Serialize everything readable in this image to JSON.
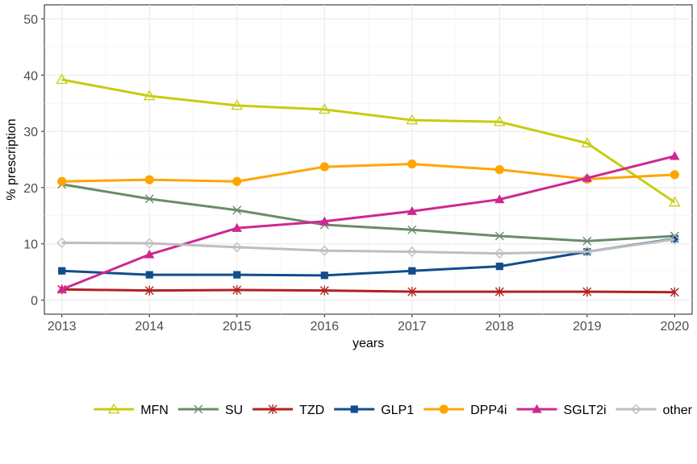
{
  "chart_data": {
    "type": "line",
    "title": "",
    "xlabel": "years",
    "ylabel": "% prescription",
    "x": [
      2013,
      2014,
      2015,
      2016,
      2017,
      2018,
      2019,
      2020
    ],
    "xlim": [
      2012.8,
      2020.2
    ],
    "ylim": [
      -2.5,
      52.5
    ],
    "yticks": [
      0,
      10,
      20,
      30,
      40,
      50
    ],
    "grid": true,
    "legend_position": "bottom",
    "series": [
      {
        "name": "MFN",
        "color": "#c8cc10",
        "marker": "triangle-open",
        "values": [
          39.2,
          36.3,
          34.6,
          33.9,
          32.0,
          31.7,
          27.9,
          17.4
        ]
      },
      {
        "name": "SU",
        "color": "#6a8c69",
        "marker": "x",
        "values": [
          20.6,
          18.0,
          16.0,
          13.4,
          12.5,
          11.4,
          10.5,
          11.4
        ]
      },
      {
        "name": "TZD",
        "color": "#b22222",
        "marker": "asterisk",
        "values": [
          1.9,
          1.7,
          1.8,
          1.7,
          1.5,
          1.5,
          1.5,
          1.4
        ]
      },
      {
        "name": "GLP1",
        "color": "#104e8b",
        "marker": "square",
        "values": [
          5.2,
          4.5,
          4.5,
          4.4,
          5.2,
          6.0,
          8.6,
          10.9
        ]
      },
      {
        "name": "DPP4i",
        "color": "#ffa500",
        "marker": "circle",
        "values": [
          21.1,
          21.4,
          21.1,
          23.7,
          24.2,
          23.2,
          21.5,
          22.3
        ]
      },
      {
        "name": "SGLT2i",
        "color": "#cd2990",
        "marker": "triangle",
        "values": [
          1.9,
          8.1,
          12.8,
          14.0,
          15.8,
          17.9,
          21.7,
          25.6
        ]
      },
      {
        "name": "other",
        "color": "#bebebe",
        "marker": "diamond-open",
        "values": [
          10.2,
          10.1,
          9.4,
          8.8,
          8.6,
          8.3,
          8.6,
          10.8
        ]
      }
    ]
  }
}
